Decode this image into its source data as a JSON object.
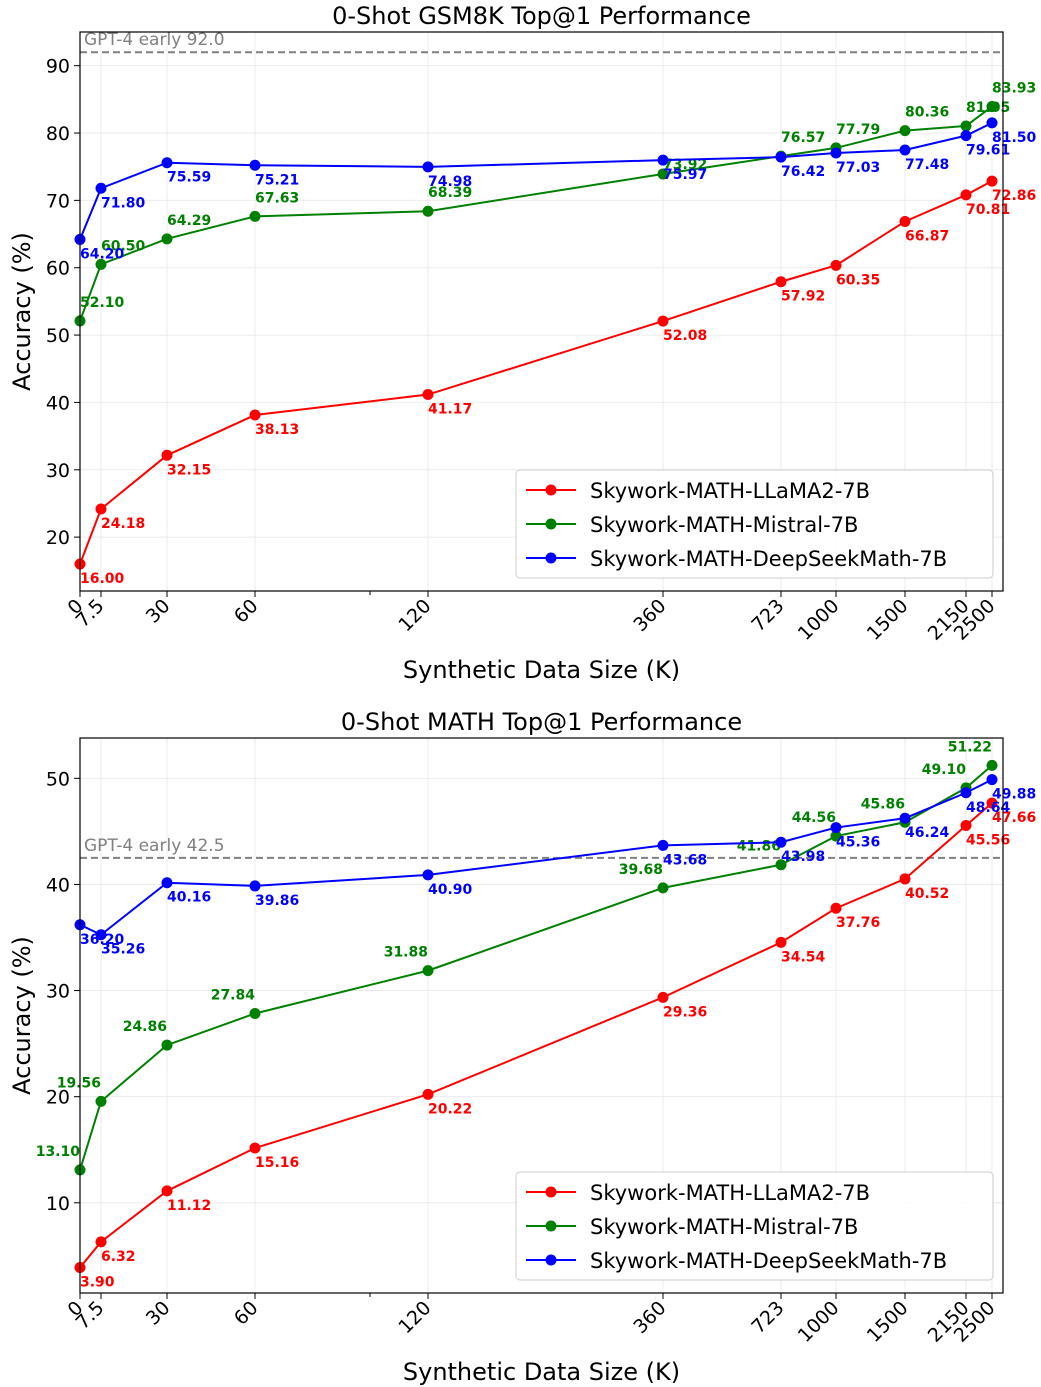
{
  "chart_data": [
    {
      "type": "line",
      "title": "0-Shot GSM8K Top@1 Performance",
      "xlabel": "Synthetic Data Size (K)",
      "ylabel": "Accuracy (%)",
      "x": [
        "0",
        "7.5",
        "30",
        "60",
        "120",
        "360",
        "723",
        "1000",
        "1500",
        "2150",
        "2500"
      ],
      "ylim": [
        12,
        95
      ],
      "yticks": [
        20,
        30,
        40,
        50,
        60,
        70,
        80,
        90
      ],
      "grid": true,
      "legend_position": "lower-right",
      "reference_line": {
        "label": "GPT-4 early 92.0",
        "value": 92.0,
        "style": "dashed",
        "color": "#808080"
      },
      "series": [
        {
          "name": "Skywork-MATH-LLaMA2-7B",
          "color": "#ff0000",
          "values": [
            16.0,
            24.18,
            32.15,
            38.13,
            41.17,
            52.08,
            57.92,
            60.35,
            66.87,
            70.81,
            72.86
          ],
          "labels": [
            "16.00",
            "24.18",
            "32.15",
            "38.13",
            "41.17",
            "52.08",
            "57.92",
            "60.35",
            "66.87",
            "70.81",
            "72.86"
          ]
        },
        {
          "name": "Skywork-MATH-Mistral-7B",
          "color": "#008000",
          "values": [
            52.1,
            60.5,
            64.29,
            67.63,
            68.39,
            73.92,
            76.57,
            77.79,
            80.36,
            81.05,
            83.93
          ],
          "labels": [
            "52.10",
            "60.50",
            "64.29",
            "67.63",
            "68.39",
            "73.92",
            "76.57",
            "77.79",
            "80.36",
            "81.05",
            "83.93"
          ]
        },
        {
          "name": "Skywork-MATH-DeepSeekMath-7B",
          "color": "#0000ff",
          "values": [
            64.2,
            71.8,
            75.59,
            75.21,
            74.98,
            75.97,
            76.42,
            77.03,
            77.48,
            79.61,
            81.5
          ],
          "labels": [
            "64.20",
            "71.80",
            "75.59",
            "75.21",
            "74.98",
            "75.97",
            "76.42",
            "77.03",
            "77.48",
            "79.61",
            "81.50"
          ]
        }
      ]
    },
    {
      "type": "line",
      "title": "0-Shot MATH Top@1 Performance",
      "xlabel": "Synthetic Data Size (K)",
      "ylabel": "Accuracy (%)",
      "x": [
        "0",
        "7.5",
        "30",
        "60",
        "120",
        "360",
        "723",
        "1000",
        "1500",
        "2150",
        "2500"
      ],
      "ylim": [
        1.5,
        53.8
      ],
      "yticks": [
        10,
        20,
        30,
        40,
        50
      ],
      "grid": true,
      "legend_position": "lower-right",
      "reference_line": {
        "label": "GPT-4 early 42.5",
        "value": 42.5,
        "style": "dashed",
        "color": "#808080"
      },
      "series": [
        {
          "name": "Skywork-MATH-LLaMA2-7B",
          "color": "#ff0000",
          "values": [
            3.9,
            6.32,
            11.12,
            15.16,
            20.22,
            29.36,
            34.54,
            37.76,
            40.52,
            45.56,
            47.66
          ],
          "labels": [
            "3.90",
            "6.32",
            "11.12",
            "15.16",
            "20.22",
            "29.36",
            "34.54",
            "37.76",
            "40.52",
            "45.56",
            "47.66"
          ]
        },
        {
          "name": "Skywork-MATH-Mistral-7B",
          "color": "#008000",
          "values": [
            13.1,
            19.56,
            24.86,
            27.84,
            31.88,
            39.68,
            41.86,
            44.56,
            45.86,
            49.1,
            51.22
          ],
          "labels": [
            "13.10",
            "19.56",
            "24.86",
            "27.84",
            "31.88",
            "39.68",
            "41.86",
            "44.56",
            "45.86",
            "49.10",
            "51.22"
          ]
        },
        {
          "name": "Skywork-MATH-DeepSeekMath-7B",
          "color": "#0000ff",
          "values": [
            36.2,
            35.26,
            40.16,
            39.86,
            40.9,
            43.68,
            43.98,
            45.36,
            46.24,
            48.64,
            49.88
          ],
          "labels": [
            "36.20",
            "35.26",
            "40.16",
            "39.86",
            "40.90",
            "43.68",
            "43.98",
            "45.36",
            "46.24",
            "48.64",
            "49.88"
          ]
        }
      ]
    }
  ]
}
